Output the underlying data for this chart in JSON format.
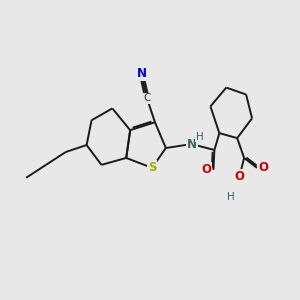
{
  "background_color": "#e8e8e8",
  "bond_color": "#1a1a1a",
  "bond_width": 1.4,
  "dbo": 0.055,
  "atoms": {
    "S": {
      "color": "#aaaa00"
    },
    "N1": {
      "color": "#0000dd"
    },
    "NH": {
      "color": "#336666"
    },
    "O": {
      "color": "#cc0000"
    },
    "H": {
      "color": "#336666"
    },
    "C": {
      "color": "#333333"
    }
  },
  "figsize": [
    3.0,
    3.0
  ],
  "dpi": 100
}
